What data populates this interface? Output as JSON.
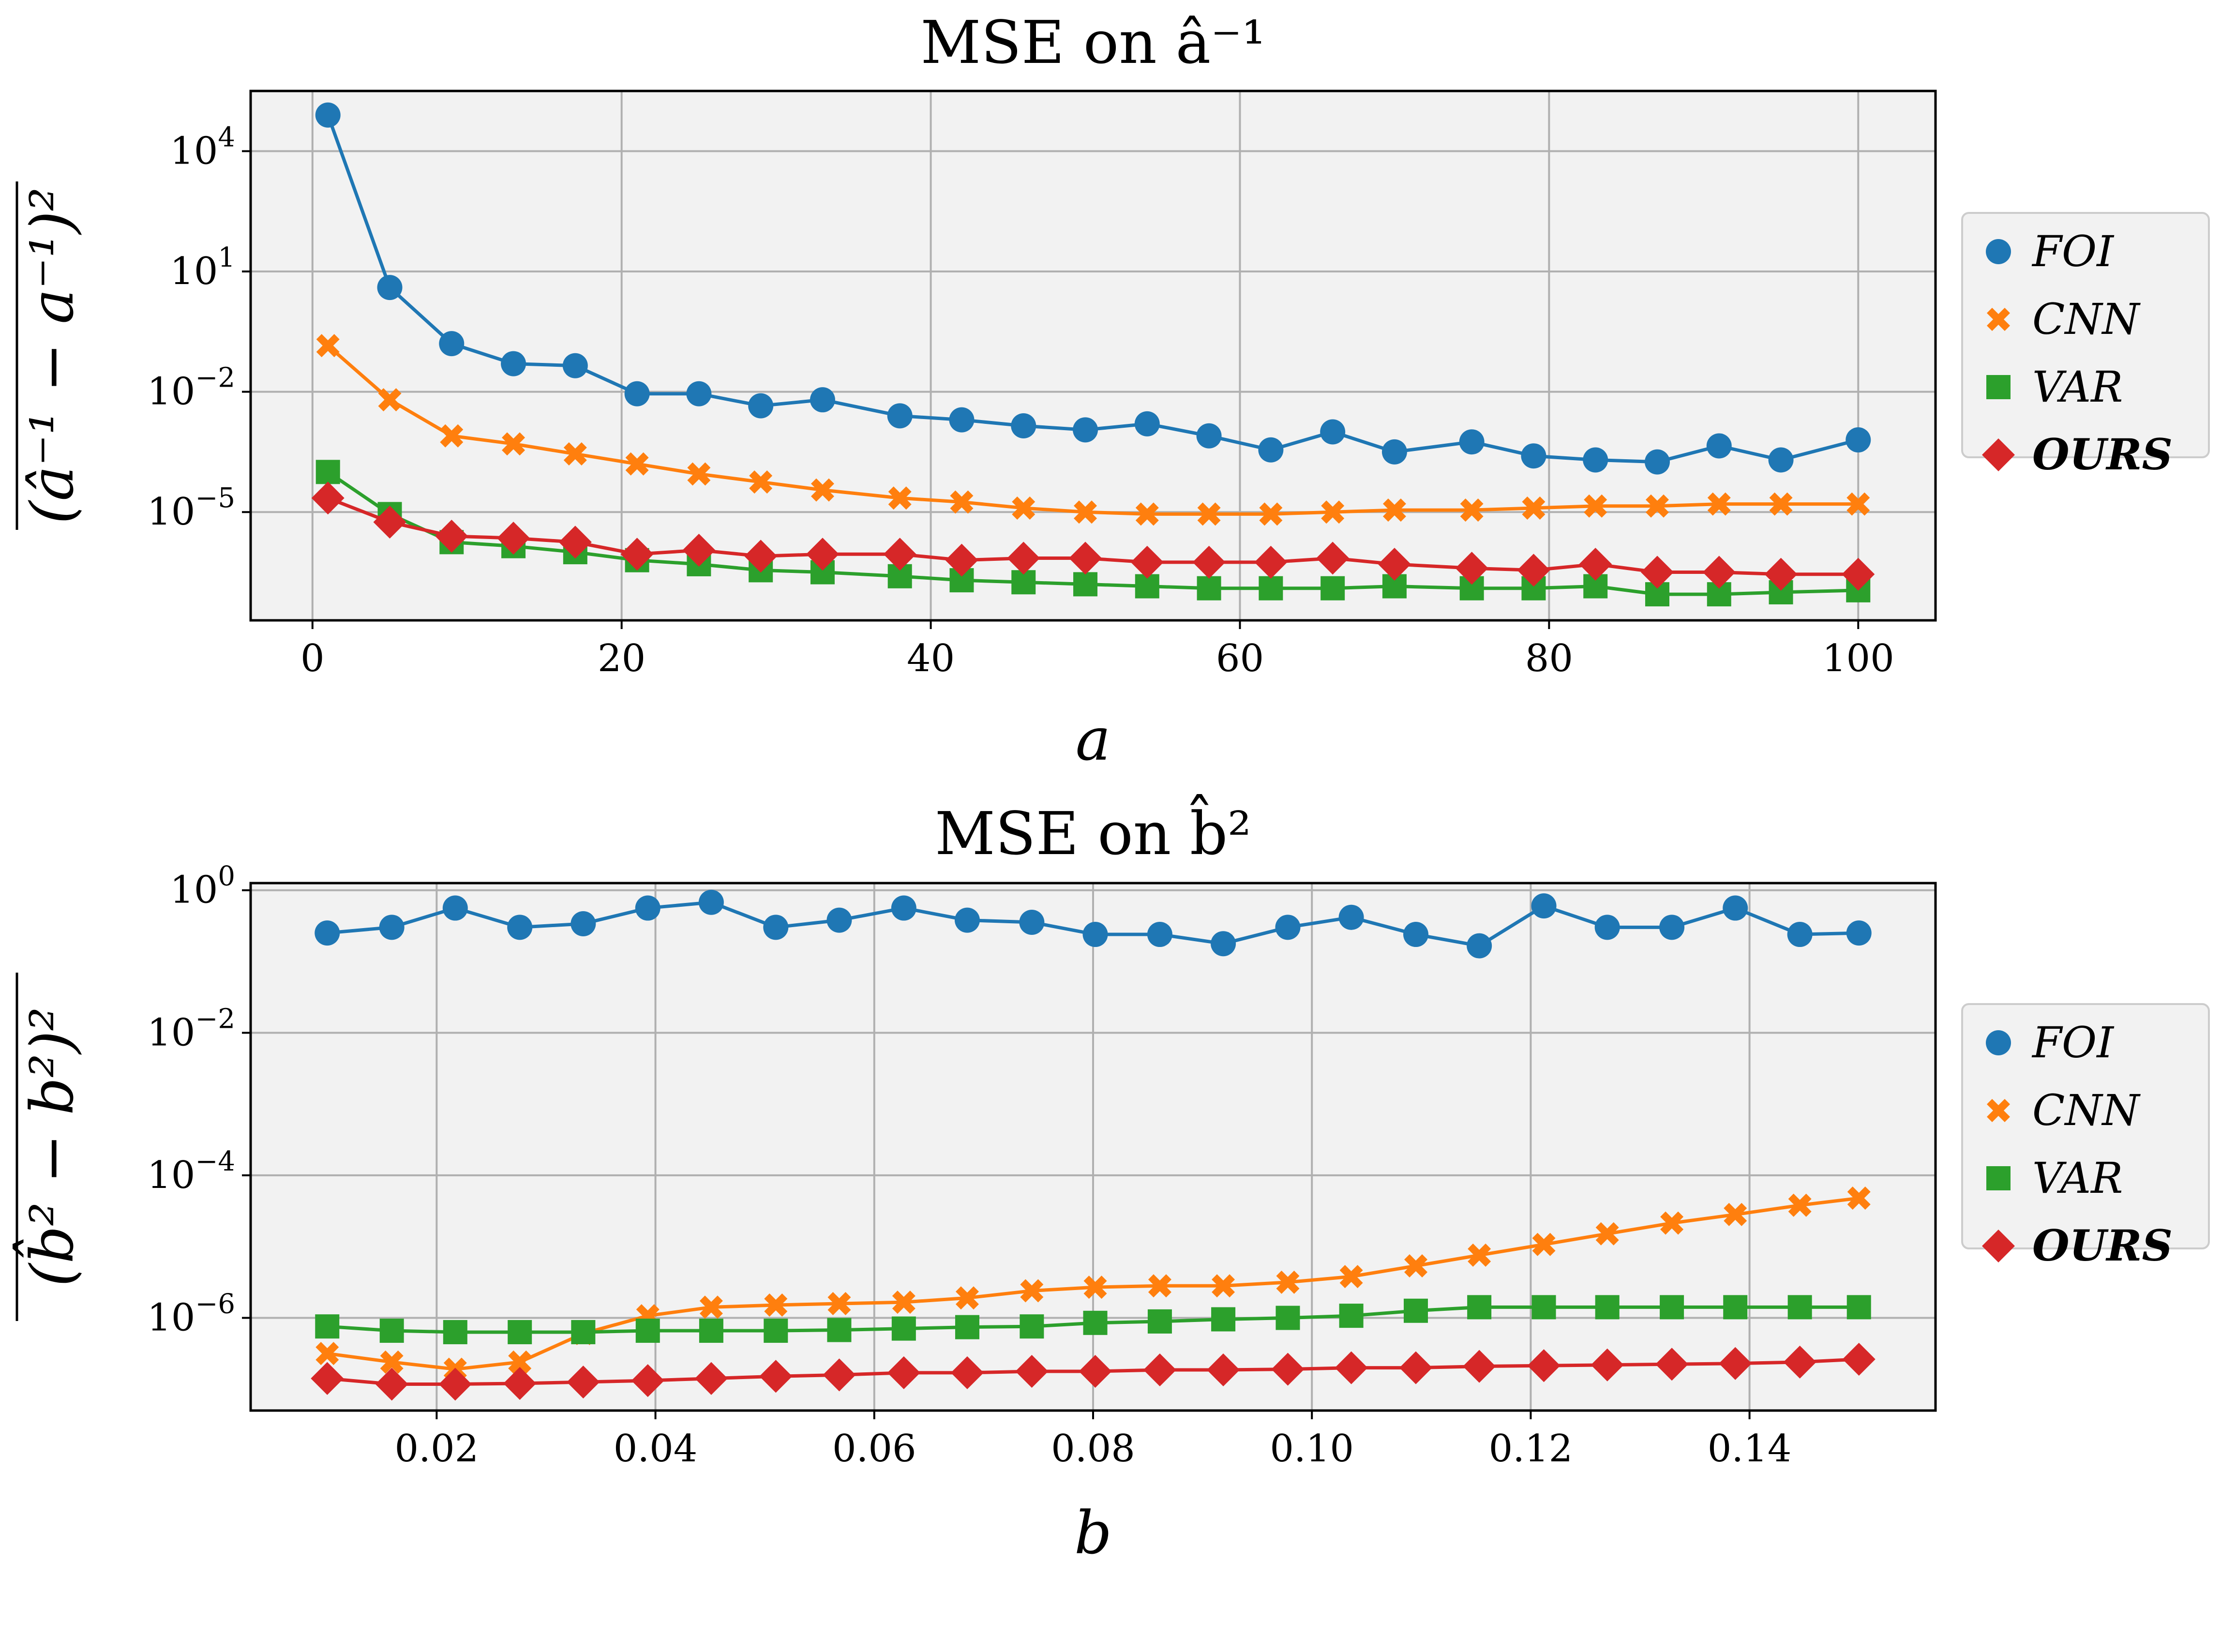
{
  "chart_data": [
    {
      "type": "line",
      "title": "MSE on â⁻¹",
      "xlabel": "a",
      "ylabel": "(â⁻¹ − a⁻¹)²",
      "yscale": "log",
      "xlim": [
        -4,
        105
      ],
      "ylim_log10": [
        -7.7,
        5.5
      ],
      "xticks": [
        0,
        20,
        40,
        60,
        80,
        100
      ],
      "xtick_labels": [
        "0",
        "20",
        "40",
        "60",
        "80",
        "100"
      ],
      "yticks_log10": [
        4,
        1,
        -2,
        -5
      ],
      "ytick_labels": [
        {
          "base": "10",
          "exp": "4"
        },
        {
          "base": "10",
          "exp": "1"
        },
        {
          "base": "10",
          "exp": "−2"
        },
        {
          "base": "10",
          "exp": "−5"
        }
      ],
      "grid": true,
      "legend_position": "right",
      "x": [
        1,
        5,
        9,
        13,
        17,
        21,
        25,
        29,
        33,
        38,
        42,
        46,
        50,
        54,
        58,
        62,
        66,
        70,
        75,
        79,
        83,
        87,
        91,
        95,
        100
      ],
      "series": [
        {
          "name": "FOI",
          "marker": "circle",
          "color": "#1f77b4",
          "values_log10": [
            4.9,
            0.6,
            -0.8,
            -1.3,
            -1.35,
            -2.05,
            -2.05,
            -2.35,
            -2.2,
            -2.6,
            -2.7,
            -2.85,
            -2.95,
            -2.8,
            -3.1,
            -3.45,
            -3.0,
            -3.5,
            -3.25,
            -3.6,
            -3.7,
            -3.75,
            -3.35,
            -3.7,
            -3.2
          ]
        },
        {
          "name": "CNN",
          "marker": "cross",
          "color": "#ff7f0e",
          "values_log10": [
            -0.85,
            -2.2,
            -3.1,
            -3.3,
            -3.55,
            -3.8,
            -4.05,
            -4.25,
            -4.45,
            -4.65,
            -4.75,
            -4.9,
            -5.0,
            -5.05,
            -5.05,
            -5.05,
            -5.0,
            -4.95,
            -4.95,
            -4.9,
            -4.85,
            -4.85,
            -4.8,
            -4.8,
            -4.8
          ]
        },
        {
          "name": "VAR",
          "marker": "square",
          "color": "#2ca02c",
          "values_log10": [
            -4.0,
            -5.05,
            -5.75,
            -5.85,
            -6.0,
            -6.2,
            -6.3,
            -6.45,
            -6.5,
            -6.6,
            -6.7,
            -6.75,
            -6.8,
            -6.85,
            -6.9,
            -6.9,
            -6.9,
            -6.85,
            -6.9,
            -6.9,
            -6.85,
            -7.05,
            -7.05,
            -7.0,
            -6.95
          ]
        },
        {
          "name": "OURS",
          "marker": "diamond",
          "color": "#d62728",
          "values_log10": [
            -4.65,
            -5.25,
            -5.6,
            -5.65,
            -5.75,
            -6.05,
            -5.95,
            -6.1,
            -6.05,
            -6.05,
            -6.2,
            -6.15,
            -6.15,
            -6.25,
            -6.25,
            -6.25,
            -6.15,
            -6.3,
            -6.4,
            -6.45,
            -6.3,
            -6.5,
            -6.5,
            -6.55,
            -6.55
          ]
        }
      ]
    },
    {
      "type": "line",
      "title": "MSE on b̂²",
      "xlabel": "b",
      "ylabel": "(b̂² − b²)²",
      "yscale": "log",
      "xlim": [
        0.003,
        0.157
      ],
      "ylim_log10": [
        -7.3,
        0.1
      ],
      "xticks": [
        0.02,
        0.04,
        0.06,
        0.08,
        0.1,
        0.12,
        0.14
      ],
      "xtick_labels": [
        "0.02",
        "0.04",
        "0.06",
        "0.08",
        "0.10",
        "0.12",
        "0.14"
      ],
      "yticks_log10": [
        0,
        -2,
        -4,
        -6
      ],
      "ytick_labels": [
        {
          "base": "10",
          "exp": "0"
        },
        {
          "base": "10",
          "exp": "−2"
        },
        {
          "base": "10",
          "exp": "−4"
        },
        {
          "base": "10",
          "exp": "−6"
        }
      ],
      "grid": true,
      "legend_position": "right",
      "x": [
        0.01,
        0.0159,
        0.0217,
        0.0276,
        0.0334,
        0.0393,
        0.0451,
        0.051,
        0.0568,
        0.0627,
        0.0685,
        0.0744,
        0.0802,
        0.0861,
        0.0919,
        0.0978,
        0.1036,
        0.1095,
        0.1153,
        0.1212,
        0.127,
        0.1329,
        0.1387,
        0.1446,
        0.15
      ],
      "series": [
        {
          "name": "FOI",
          "marker": "circle",
          "color": "#1f77b4",
          "values_log10": [
            -0.6,
            -0.52,
            -0.25,
            -0.52,
            -0.47,
            -0.25,
            -0.17,
            -0.52,
            -0.42,
            -0.25,
            -0.42,
            -0.45,
            -0.62,
            -0.62,
            -0.75,
            -0.52,
            -0.38,
            -0.62,
            -0.78,
            -0.22,
            -0.52,
            -0.52,
            -0.25,
            -0.62,
            -0.6
          ]
        },
        {
          "name": "CNN",
          "marker": "cross",
          "color": "#ff7f0e",
          "values_log10": [
            -6.5,
            -6.62,
            -6.72,
            -6.62,
            -6.22,
            -5.97,
            -5.85,
            -5.82,
            -5.8,
            -5.78,
            -5.72,
            -5.62,
            -5.57,
            -5.55,
            -5.55,
            -5.5,
            -5.42,
            -5.27,
            -5.12,
            -4.97,
            -4.82,
            -4.67,
            -4.55,
            -4.42,
            -4.32
          ]
        },
        {
          "name": "VAR",
          "marker": "square",
          "color": "#2ca02c",
          "values_log10": [
            -6.12,
            -6.18,
            -6.2,
            -6.2,
            -6.2,
            -6.18,
            -6.18,
            -6.18,
            -6.17,
            -6.15,
            -6.13,
            -6.12,
            -6.07,
            -6.05,
            -6.02,
            -6.0,
            -5.97,
            -5.9,
            -5.85,
            -5.85,
            -5.85,
            -5.85,
            -5.85,
            -5.85,
            -5.85
          ]
        },
        {
          "name": "OURS",
          "marker": "diamond",
          "color": "#d62728",
          "values_log10": [
            -6.85,
            -6.93,
            -6.93,
            -6.92,
            -6.9,
            -6.88,
            -6.85,
            -6.82,
            -6.8,
            -6.77,
            -6.77,
            -6.75,
            -6.75,
            -6.73,
            -6.73,
            -6.72,
            -6.7,
            -6.7,
            -6.68,
            -6.67,
            -6.66,
            -6.65,
            -6.64,
            -6.62,
            -6.58
          ]
        }
      ]
    }
  ]
}
